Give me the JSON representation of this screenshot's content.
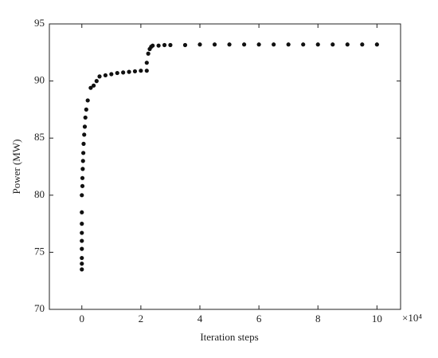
{
  "chart_data": {
    "type": "scatter",
    "xlabel": "Iteration steps",
    "ylabel": "Power (MW)",
    "x_multiplier": "×10⁴",
    "x": [
      0,
      0,
      0,
      0,
      0,
      0,
      0,
      0,
      0,
      0.02,
      0.02,
      0.03,
      0.04,
      0.05,
      0.06,
      0.08,
      0.1,
      0.12,
      0.15,
      0.2,
      0.3,
      0.4,
      0.5,
      0.6,
      0.8,
      1.0,
      1.2,
      1.4,
      1.6,
      1.8,
      2.0,
      2.2,
      2.2,
      2.25,
      2.3,
      2.35,
      2.4,
      2.6,
      2.8,
      3.0,
      3.5,
      4.0,
      4.5,
      5,
      5.5,
      6,
      6.5,
      7,
      7.5,
      8,
      8.5,
      9,
      9.5,
      10
    ],
    "y": [
      73.5,
      74,
      74.5,
      75.3,
      76,
      76.7,
      77.5,
      78.5,
      80,
      80.8,
      81.5,
      82.3,
      83,
      83.7,
      84.5,
      85.3,
      86,
      86.8,
      87.5,
      88.3,
      89.4,
      89.6,
      90,
      90.4,
      90.5,
      90.6,
      90.7,
      90.75,
      90.8,
      90.85,
      90.9,
      90.9,
      91.6,
      92.4,
      92.8,
      93,
      93.1,
      93.1,
      93.15,
      93.15,
      93.15,
      93.2,
      93.2,
      93.2,
      93.2,
      93.2,
      93.2,
      93.2,
      93.2,
      93.2,
      93.2,
      93.2,
      93.2,
      93.2
    ],
    "color": "#111111",
    "xlim": [
      -1.1,
      10.8
    ],
    "ylim": [
      70,
      95
    ],
    "xticks": [
      0,
      2,
      4,
      6,
      8,
      10
    ],
    "yticks": [
      70,
      75,
      80,
      85,
      90,
      95
    ],
    "grid": false
  }
}
